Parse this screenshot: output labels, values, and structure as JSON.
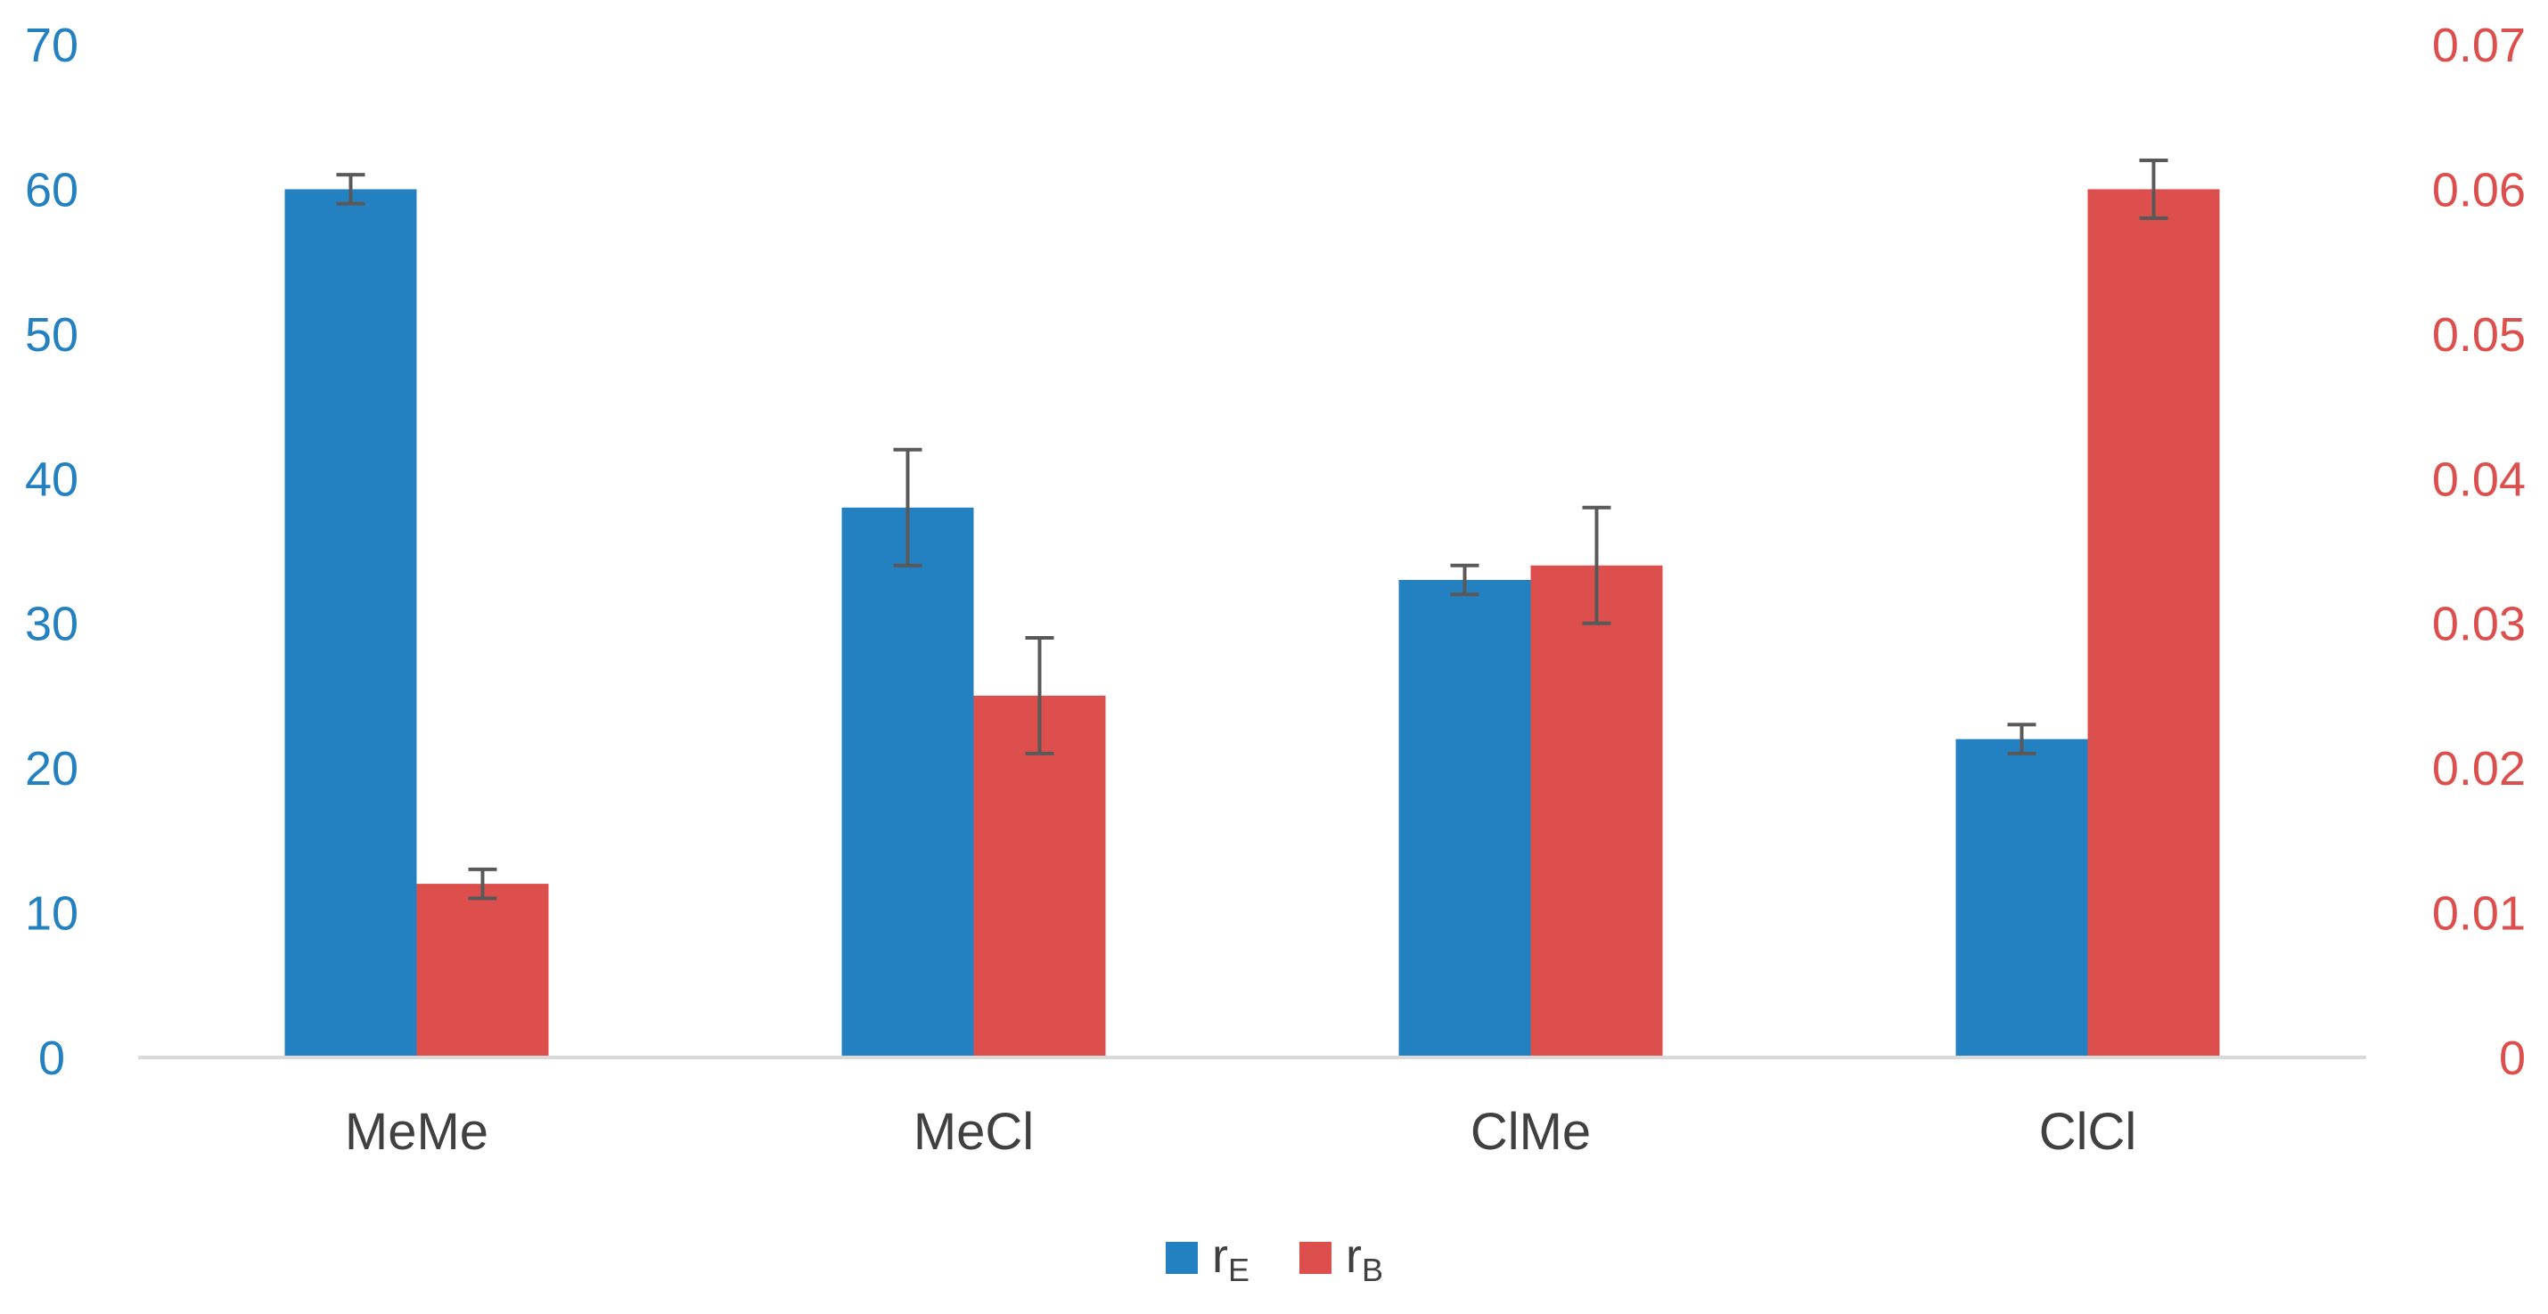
{
  "chart_data": {
    "type": "bar",
    "categories": [
      "MeMe",
      "MeCl",
      "ClMe",
      "ClCl"
    ],
    "series": [
      {
        "name": "rE",
        "label_main": "r",
        "label_sub": "E",
        "axis": "left",
        "color": "#2481c1",
        "values": [
          60,
          38,
          33,
          22
        ],
        "errors": [
          1,
          4,
          1,
          1
        ]
      },
      {
        "name": "rB",
        "label_main": "r",
        "label_sub": "B",
        "axis": "right",
        "color": "#dc4f4c",
        "values": [
          0.012,
          0.025,
          0.034,
          0.06
        ],
        "errors": [
          0.001,
          0.004,
          0.004,
          0.002
        ]
      }
    ],
    "y_left": {
      "ylim": [
        0,
        70
      ],
      "ticks": [
        "0",
        "10",
        "20",
        "30",
        "40",
        "50",
        "60",
        "70"
      ],
      "color": "#2481c1"
    },
    "y_right": {
      "ylim": [
        0,
        0.07
      ],
      "ticks": [
        "0",
        "0.01",
        "0.02",
        "0.03",
        "0.04",
        "0.05",
        "0.06",
        "0.07"
      ],
      "color": "#dc4f4c"
    },
    "error_bar_color": "#595959",
    "axis_line_color": "#d9d9d9",
    "grid": false,
    "legend_position": "bottom-center"
  }
}
